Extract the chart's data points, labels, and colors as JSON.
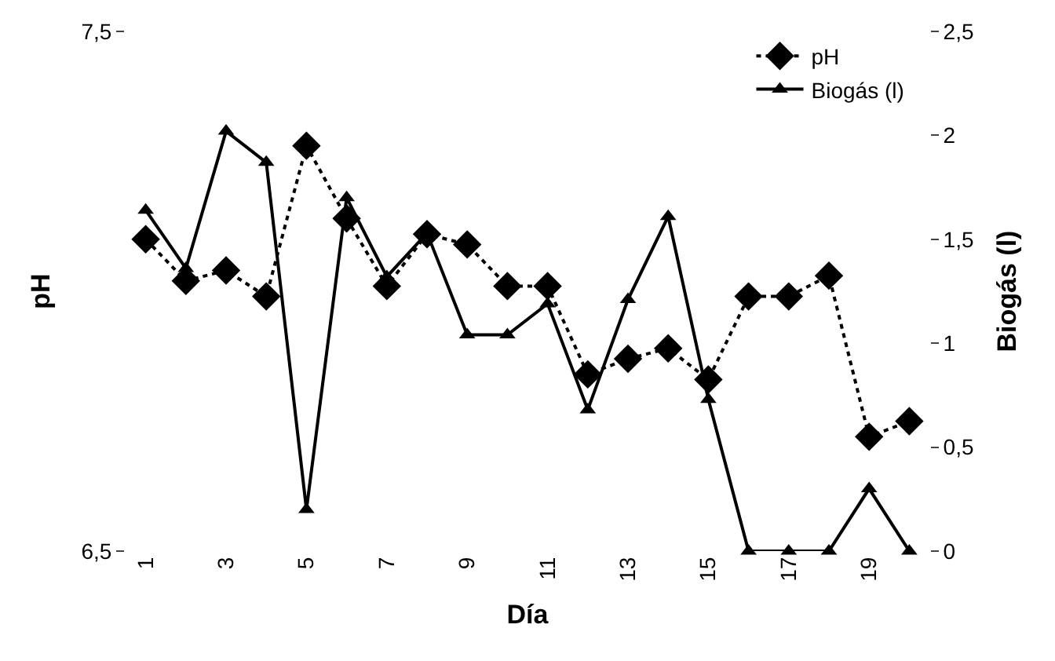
{
  "chart_data": {
    "type": "line",
    "xlabel": "Día",
    "ylabel": "pH",
    "y2label": "Biogás (l)",
    "categories": [
      "1",
      null,
      "3",
      null,
      "5",
      null,
      "7",
      null,
      "9",
      null,
      "11",
      null,
      "13",
      null,
      "15",
      null,
      "17",
      null,
      "19",
      null
    ],
    "ylim": [
      6.5,
      7.5
    ],
    "yticks": [
      {
        "value": 6.5,
        "label": "6,5"
      },
      {
        "value": 7.5,
        "label": "7,5"
      }
    ],
    "y2lim": [
      0,
      2.5
    ],
    "y2ticks": [
      0,
      {
        "value": 0.5,
        "label": "0,5"
      },
      1,
      {
        "value": 1.5,
        "label": "1,5"
      },
      2,
      {
        "value": 2.5,
        "label": "2,5"
      }
    ],
    "legend": "top right",
    "series": [
      {
        "name": "pH",
        "color": "#000000",
        "marker": "diamond",
        "line_style": "dotted",
        "values": [
          7.1,
          7.02,
          7.04,
          6.99,
          7.28,
          7.14,
          7.01,
          7.11,
          7.09,
          7.01,
          7.01,
          6.84,
          6.87,
          6.89,
          6.83,
          6.99,
          6.99,
          7.03,
          6.72,
          6.75
        ]
      },
      {
        "name": "Biogás (l)",
        "color": "#000000",
        "marker": "triangle",
        "line_style": "solid",
        "axis": "y2",
        "values": [
          1.64,
          1.36,
          2.02,
          1.87,
          0.2,
          1.7,
          1.32,
          1.53,
          1.04,
          1.04,
          1.19,
          0.68,
          1.21,
          1.61,
          0.73,
          0,
          0,
          0,
          0.3,
          0
        ]
      }
    ]
  }
}
